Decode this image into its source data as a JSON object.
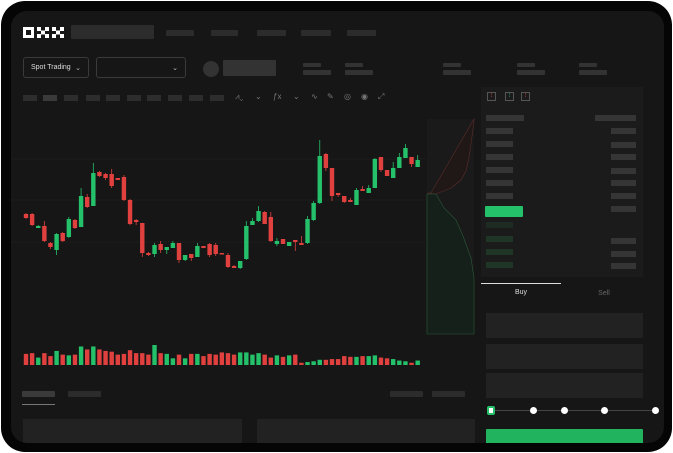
{
  "header": {
    "logo": "OKX"
  },
  "toolbar": {
    "market_type": "Spot Trading",
    "pair_selector": ""
  },
  "trade_panel": {
    "tabs": [
      "Buy",
      "Sell"
    ],
    "active_tab": "Buy",
    "leverage_slider_level": 0,
    "buy_button_label": ""
  },
  "colors": {
    "up": "#25c16a",
    "down": "#e0413f",
    "background": "#161616",
    "accent": "#22b35e"
  },
  "chart_data": {
    "type": "candlestick",
    "candles": [
      [
        57,
        58,
        52,
        53
      ],
      [
        57,
        58,
        45,
        46
      ],
      [
        43,
        46,
        43,
        45
      ],
      [
        45,
        50,
        29,
        30
      ],
      [
        28,
        29,
        22,
        24
      ],
      [
        21,
        38,
        16,
        37
      ],
      [
        38,
        39,
        29,
        30
      ],
      [
        34,
        54,
        33,
        52
      ],
      [
        51,
        52,
        42,
        43
      ],
      [
        44,
        83,
        44,
        75
      ],
      [
        74,
        77,
        63,
        64
      ],
      [
        65,
        108,
        65,
        98
      ],
      [
        99,
        100,
        94,
        95
      ],
      [
        97,
        98,
        91,
        93
      ],
      [
        97,
        102,
        83,
        85
      ],
      [
        93,
        93,
        91,
        91
      ],
      [
        94,
        96,
        70,
        71
      ],
      [
        71,
        72,
        46,
        47
      ],
      [
        51,
        52,
        46,
        49
      ],
      [
        48,
        48,
        14,
        18
      ],
      [
        18,
        19,
        15,
        16
      ],
      [
        17,
        28,
        14,
        26
      ],
      [
        27,
        30,
        18,
        21
      ],
      [
        21,
        24,
        17,
        24
      ],
      [
        23,
        30,
        23,
        28
      ],
      [
        28,
        28,
        8,
        11
      ],
      [
        11,
        16,
        10,
        16
      ],
      [
        17,
        17,
        10,
        13
      ],
      [
        14,
        28,
        14,
        25
      ],
      [
        25,
        25,
        23,
        23
      ],
      [
        27,
        28,
        14,
        16
      ],
      [
        26,
        28,
        15,
        17
      ],
      [
        18,
        18,
        17,
        17
      ],
      [
        16,
        18,
        3,
        4
      ],
      [
        5,
        6,
        3,
        3
      ],
      [
        3,
        10,
        2,
        10
      ],
      [
        12,
        50,
        11,
        45
      ],
      [
        46,
        53,
        46,
        50
      ],
      [
        50,
        65,
        49,
        60
      ],
      [
        59,
        60,
        47,
        47
      ],
      [
        54,
        59,
        29,
        30
      ],
      [
        27,
        33,
        25,
        30
      ],
      [
        32,
        32,
        27,
        27
      ],
      [
        25,
        29,
        25,
        29
      ],
      [
        31,
        31,
        20,
        29
      ],
      [
        28,
        35,
        26,
        26
      ],
      [
        28,
        55,
        27,
        52
      ],
      [
        51,
        70,
        50,
        68
      ],
      [
        68,
        131,
        67,
        115
      ],
      [
        117,
        118,
        100,
        103
      ],
      [
        103,
        103,
        70,
        75
      ],
      [
        78,
        78,
        74,
        76
      ],
      [
        75,
        75,
        68,
        69
      ],
      [
        71,
        73,
        69,
        69
      ],
      [
        66,
        83,
        66,
        81
      ],
      [
        82,
        85,
        80,
        80
      ],
      [
        78,
        86,
        78,
        83
      ],
      [
        83,
        113,
        83,
        112
      ],
      [
        114,
        114,
        99,
        101
      ],
      [
        101,
        101,
        95,
        95
      ],
      [
        93,
        109,
        93,
        103
      ],
      [
        103,
        118,
        103,
        114
      ],
      [
        113,
        127,
        113,
        123
      ],
      [
        114,
        114,
        104,
        107
      ],
      [
        104,
        116,
        104,
        111
      ]
    ],
    "volume": [
      15,
      16,
      10,
      16,
      12,
      19,
      14,
      13,
      14,
      25,
      21,
      25,
      21,
      19,
      18,
      14,
      15,
      20,
      16,
      16,
      14,
      27,
      16,
      15,
      9,
      14,
      9,
      15,
      15,
      12,
      15,
      14,
      17,
      16,
      14,
      17,
      17,
      14,
      16,
      14,
      10,
      13,
      11,
      13,
      14,
      3,
      4,
      5,
      7,
      7,
      8,
      8,
      12,
      11,
      11,
      12,
      12,
      13,
      10,
      9,
      8,
      6,
      5,
      3,
      6
    ]
  }
}
